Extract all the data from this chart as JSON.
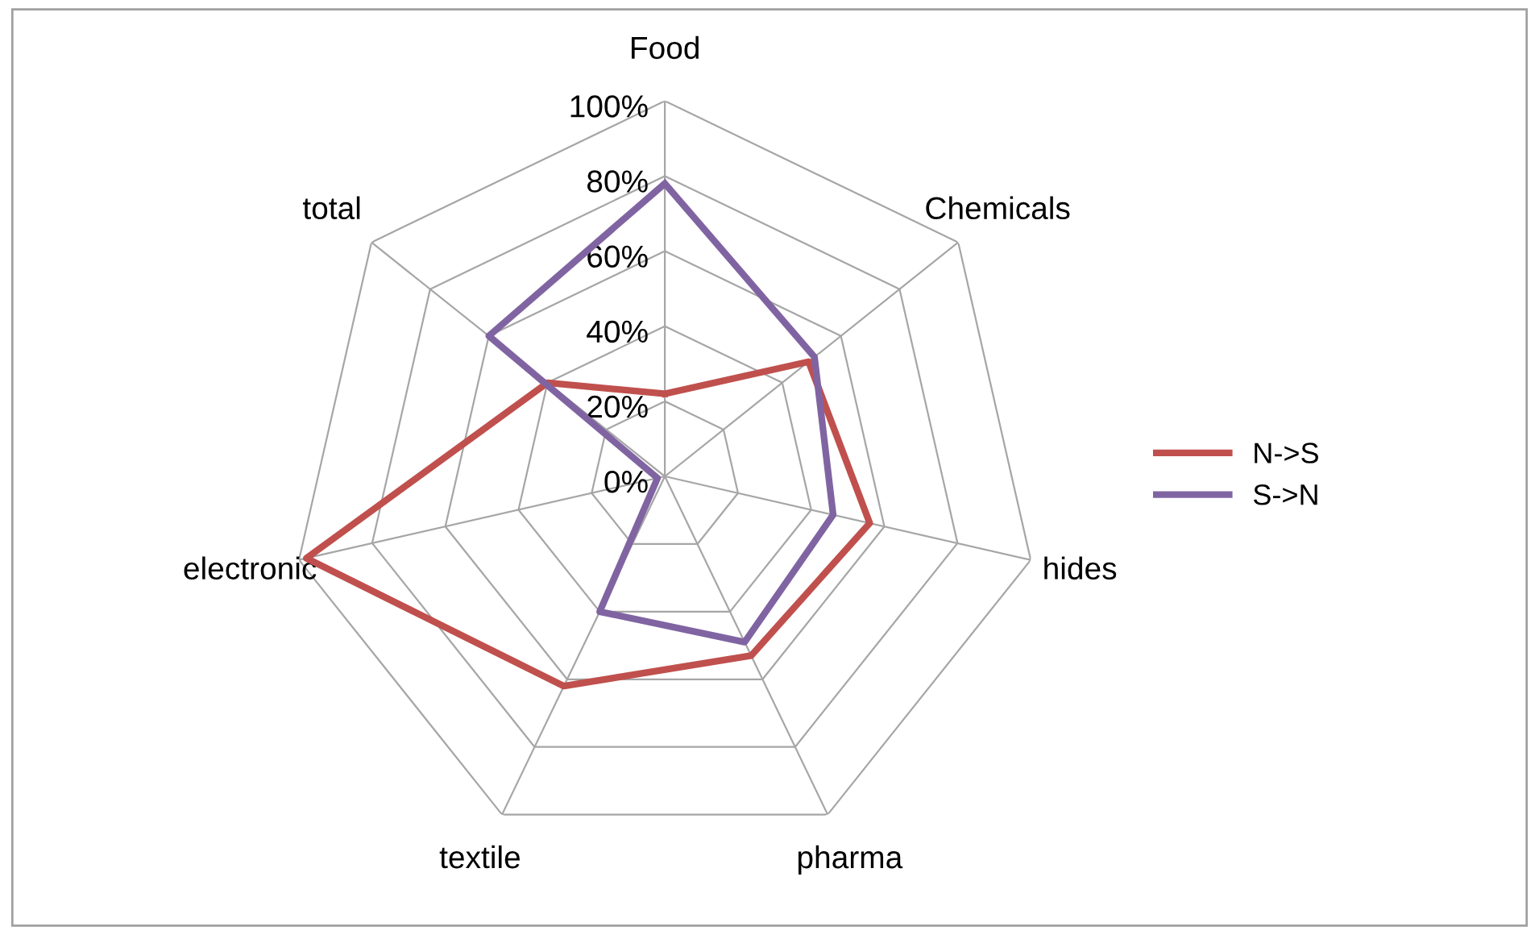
{
  "chart_data": {
    "type": "radar",
    "categories": [
      "Food",
      "Chemicals",
      "hides",
      "pharma",
      "textile",
      "electronic",
      "total"
    ],
    "series": [
      {
        "name": "N->S",
        "color": "#c0504d",
        "values": [
          22,
          49,
          56,
          53,
          62,
          98,
          40
        ]
      },
      {
        "name": "S->N",
        "color": "#8064a2",
        "values": [
          78,
          51,
          46,
          49,
          40,
          2,
          60
        ]
      }
    ],
    "ylim": [
      0,
      100
    ],
    "yticks": [
      {
        "value": 0,
        "label": "0%"
      },
      {
        "value": 20,
        "label": "20%"
      },
      {
        "value": 40,
        "label": "40%"
      },
      {
        "value": 60,
        "label": "60%"
      },
      {
        "value": 80,
        "label": "80%"
      },
      {
        "value": 100,
        "label": "100%"
      }
    ],
    "grid": true,
    "legend": "right",
    "marker": "none",
    "line_style": "solid"
  }
}
